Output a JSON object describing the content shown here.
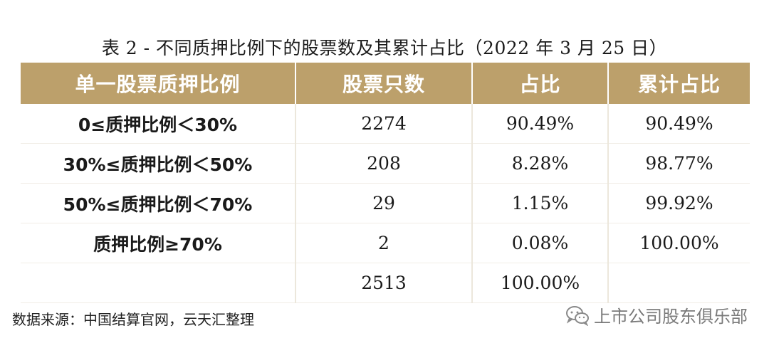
{
  "title": "表 2 -  不同质押比例下的股票数及其累计占比（2022 年 3 月 25 日）",
  "table": {
    "headers": [
      "单一股票质押比例",
      "股票只数",
      "占比",
      "累计占比"
    ],
    "rows": [
      [
        "0≤质押比例＜30%",
        "2274",
        "90.49%",
        "90.49%"
      ],
      [
        "30%≤质押比例＜50%",
        "208",
        "8.28%",
        "98.77%"
      ],
      [
        "50%≤质押比例＜70%",
        "29",
        "1.15%",
        "99.92%"
      ],
      [
        "质押比例≥70%",
        "2",
        "0.08%",
        "100.00%"
      ],
      [
        "",
        "2513",
        "100.00%",
        ""
      ]
    ]
  },
  "source": "数据来源：中国结算官网，云天汇整理",
  "watermark": {
    "icon": "wechat-icon",
    "text": "上市公司股东俱乐部"
  },
  "colors": {
    "header_bg": "#bca06b",
    "header_text": "#ffffff"
  }
}
